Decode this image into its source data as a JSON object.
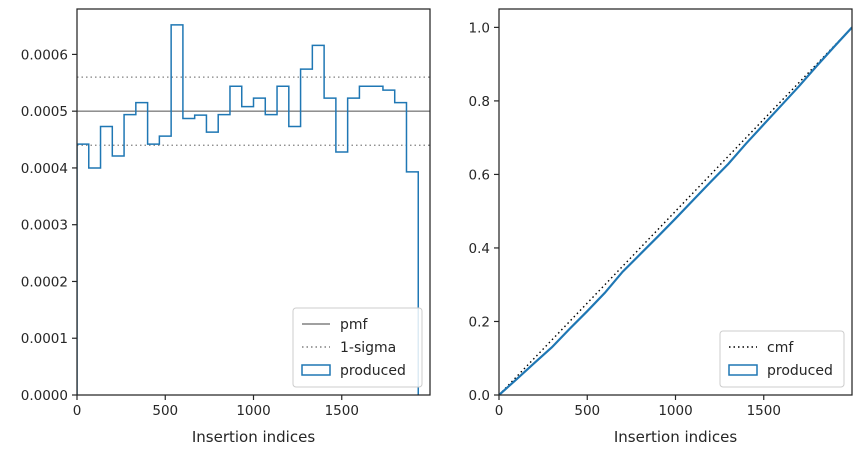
{
  "chart_data": [
    {
      "type": "step",
      "xlabel": "Insertion indices",
      "ylabel": "",
      "xlim": [
        0,
        2000
      ],
      "ylim": [
        0,
        0.00068
      ],
      "xticks": [
        0,
        500,
        1000,
        1500
      ],
      "xtick_labels": [
        "0",
        "500",
        "1000",
        "1500"
      ],
      "yticks": [
        0,
        0.0001,
        0.0002,
        0.0003,
        0.0004,
        0.0005,
        0.0006
      ],
      "ytick_labels": [
        "0.0000",
        "0.0001",
        "0.0002",
        "0.0003",
        "0.0004",
        "0.0005",
        "0.0006"
      ],
      "legend_position": "lower-right",
      "legend": [
        "pmf",
        "1-sigma",
        "produced"
      ],
      "reference_lines": [
        {
          "name": "pmf",
          "y": 0.0005,
          "style": "solid",
          "color": "#808080"
        },
        {
          "name": "1-sigma",
          "y": 0.00056,
          "style": "dotted",
          "color": "#808080"
        },
        {
          "name": "1-sigma",
          "y": 0.00044,
          "style": "dotted",
          "color": "#808080"
        }
      ],
      "series": [
        {
          "name": "produced",
          "color": "#1f77b4",
          "bin_width": 66.67,
          "values": [
            0.000442,
            0.0004,
            0.000473,
            0.000421,
            0.000494,
            0.000515,
            0.000442,
            0.000456,
            0.000652,
            0.000487,
            0.000493,
            0.000463,
            0.000494,
            0.000544,
            0.000508,
            0.000523,
            0.000494,
            0.000544,
            0.000473,
            0.000574,
            0.000616,
            0.000523,
            0.000428,
            0.000523,
            0.000544,
            0.000544,
            0.000537,
            0.000515,
            0.000393
          ]
        }
      ]
    },
    {
      "type": "line",
      "xlabel": "Insertion indices",
      "ylabel": "",
      "xlim": [
        0,
        2000
      ],
      "ylim": [
        0,
        1.05
      ],
      "xticks": [
        0,
        500,
        1000,
        1500
      ],
      "xtick_labels": [
        "0",
        "500",
        "1000",
        "1500"
      ],
      "yticks": [
        0,
        0.2,
        0.4,
        0.6,
        0.8,
        1.0
      ],
      "ytick_labels": [
        "0.0",
        "0.2",
        "0.4",
        "0.6",
        "0.8",
        "1.0"
      ],
      "legend_position": "lower-right",
      "legend": [
        "cmf",
        "produced"
      ],
      "series": [
        {
          "name": "cmf",
          "color": "#000000",
          "style": "dotted",
          "x": [
            0,
            2000
          ],
          "y": [
            0,
            1.0
          ]
        },
        {
          "name": "produced",
          "color": "#1f77b4",
          "style": "solid",
          "x": [
            0,
            100,
            200,
            300,
            400,
            500,
            600,
            700,
            800,
            900,
            1000,
            1100,
            1200,
            1300,
            1400,
            1500,
            1600,
            1700,
            1800,
            1900,
            2000
          ],
          "y": [
            0,
            0.043,
            0.087,
            0.13,
            0.18,
            0.228,
            0.278,
            0.335,
            0.383,
            0.431,
            0.48,
            0.53,
            0.58,
            0.629,
            0.684,
            0.736,
            0.788,
            0.84,
            0.895,
            0.948,
            1.0
          ]
        }
      ]
    }
  ]
}
